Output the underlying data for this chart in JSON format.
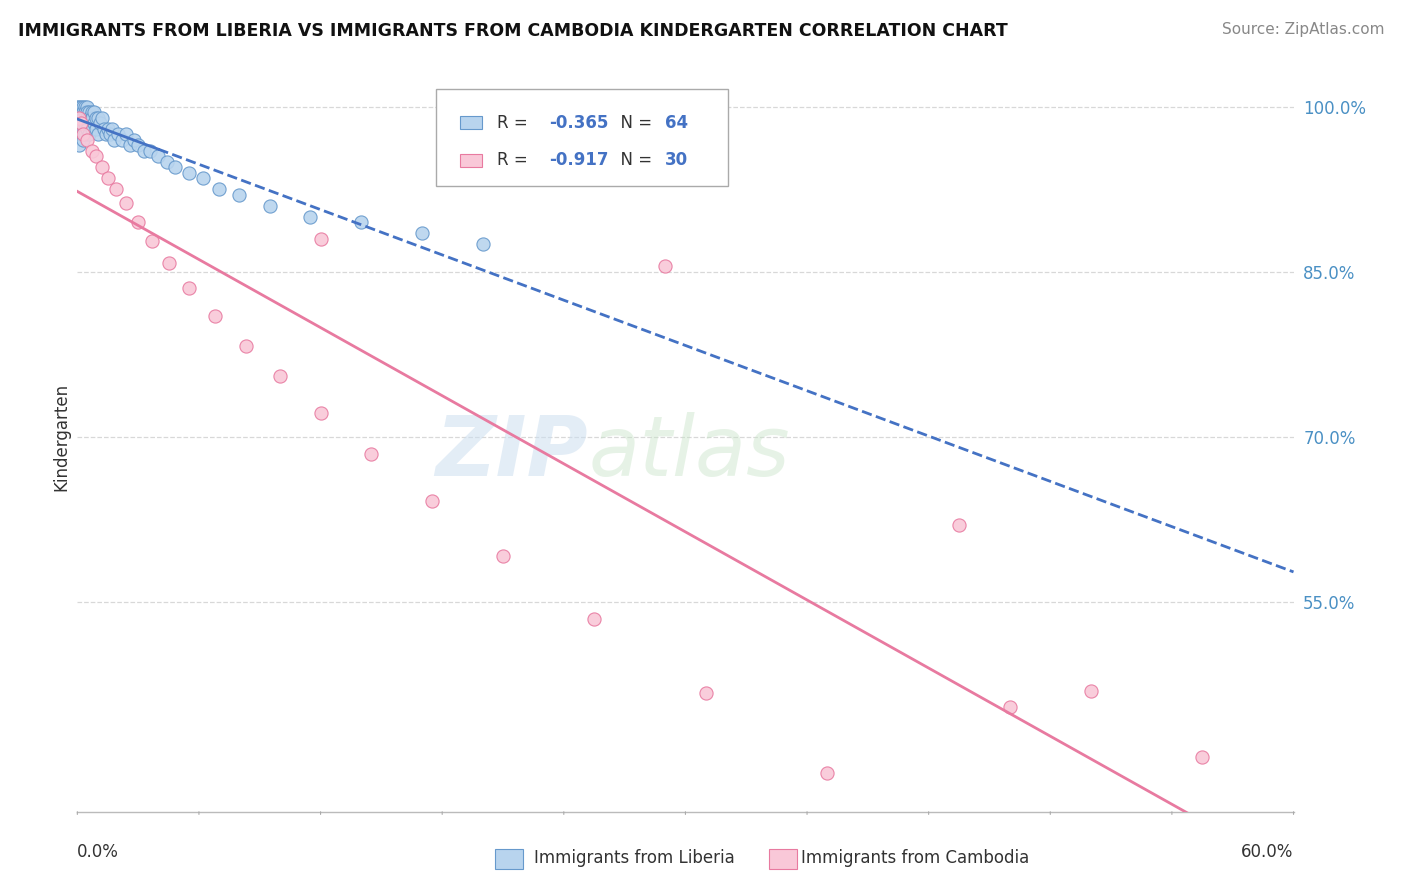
{
  "title": "IMMIGRANTS FROM LIBERIA VS IMMIGRANTS FROM CAMBODIA KINDERGARTEN CORRELATION CHART",
  "source": "Source: ZipAtlas.com",
  "ylabel": "Kindergarten",
  "watermark": "ZIPatlas",
  "liberia": {
    "R": -0.365,
    "N": 64,
    "color": "#b8d4ee",
    "edge_color": "#6699cc",
    "line_color": "#4472c4"
  },
  "cambodia": {
    "R": -0.917,
    "N": 30,
    "color": "#f9c8d8",
    "edge_color": "#e87aa0",
    "line_color": "#e87aa0"
  },
  "xmin": 0.0,
  "xmax": 0.6,
  "ymin": 0.36,
  "ymax": 1.04,
  "yticks": [
    0.55,
    0.7,
    0.85,
    1.0
  ],
  "ytick_labels": [
    "55.0%",
    "70.0%",
    "85.0%",
    "100.0%"
  ],
  "grid_color": "#d8d8d8",
  "background_color": "#ffffff",
  "legend_label_liberia": "Immigrants from Liberia",
  "legend_label_cambodia": "Immigrants from Cambodia"
}
